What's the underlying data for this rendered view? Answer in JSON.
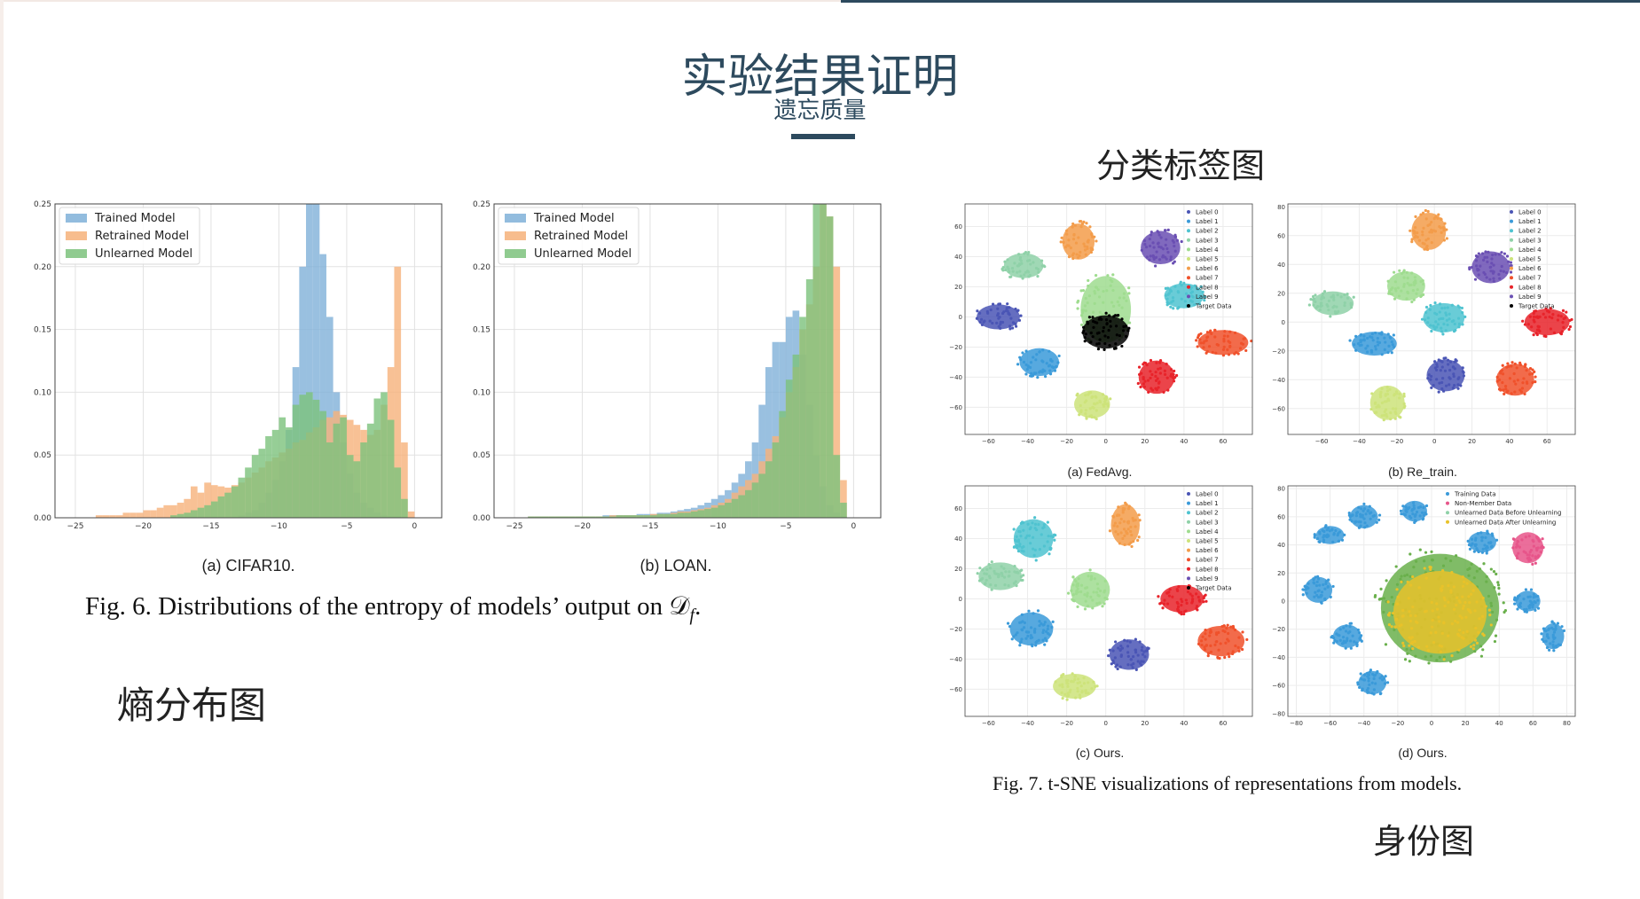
{
  "slide": {
    "title": "实验结果证明",
    "subtitle": "遗忘质量",
    "label_entropy": "熵分布图",
    "label_classification": "分类标签图",
    "label_identity": "身份图",
    "fig6_caption": "Fig. 6.  Distributions of the entropy of models’ output on 𝒟",
    "fig6_caption_sub": "f",
    "fig6_caption_end": ".",
    "fig7_caption": "Fig. 7.  t-SNE visualizations of representations from models.",
    "colors": {
      "title": "#2d4a5e",
      "trained": "#7fb0d8",
      "retrained": "#f6b27a",
      "unlearned": "#7cc27c"
    }
  },
  "chart_data": [
    {
      "type": "bar",
      "id": "fig6a",
      "caption": "(a) CIFAR10.",
      "xlim": [
        -26.5,
        2
      ],
      "ylim": [
        0,
        0.25
      ],
      "xticks": [
        -25,
        -20,
        -15,
        -10,
        -5,
        0
      ],
      "yticks": [
        0.0,
        0.05,
        0.1,
        0.15,
        0.2,
        0.25
      ],
      "ytick_labels": [
        "0.00",
        "0.05",
        "0.10",
        "0.15",
        "0.20",
        "0.25"
      ],
      "bin_start": -25.5,
      "bin_width": 0.5,
      "grid": true,
      "legend_position": "top-left",
      "series": [
        {
          "name": "Trained Model",
          "color": "#7fb0d8",
          "values": [
            0,
            0,
            0,
            0,
            0,
            0,
            0,
            0,
            0,
            0,
            0,
            0,
            0,
            0,
            0,
            0,
            0,
            0,
            0,
            0,
            0,
            0,
            0,
            0,
            0,
            0.002,
            0.004,
            0.006,
            0.012,
            0.02,
            0.03,
            0.045,
            0.07,
            0.12,
            0.2,
            0.25,
            0.25,
            0.21,
            0.16,
            0.1,
            0.06,
            0.035,
            0.02,
            0.012,
            0.008,
            0.004,
            0.002,
            0.001,
            0.001,
            0,
            0
          ]
        },
        {
          "name": "Retrained Model",
          "color": "#f6b27a",
          "values": [
            0,
            0,
            0,
            0,
            0.002,
            0.002,
            0.002,
            0.002,
            0.004,
            0.004,
            0.004,
            0.006,
            0.006,
            0.008,
            0.01,
            0.01,
            0.012,
            0.015,
            0.025,
            0.02,
            0.028,
            0.026,
            0.025,
            0.024,
            0.026,
            0.028,
            0.032,
            0.036,
            0.04,
            0.045,
            0.048,
            0.052,
            0.055,
            0.06,
            0.062,
            0.068,
            0.072,
            0.078,
            0.08,
            0.085,
            0.082,
            0.078,
            0.074,
            0.07,
            0.066,
            0.07,
            0.09,
            0.12,
            0.2,
            0.06,
            0.005
          ]
        },
        {
          "name": "Unlearned Model",
          "color": "#7cc27c",
          "values": [
            0,
            0,
            0,
            0,
            0,
            0,
            0,
            0,
            0,
            0,
            0,
            0,
            0,
            0,
            0,
            0.002,
            0.003,
            0.004,
            0.006,
            0.008,
            0.01,
            0.013,
            0.017,
            0.02,
            0.025,
            0.032,
            0.04,
            0.05,
            0.055,
            0.065,
            0.07,
            0.08,
            0.072,
            0.09,
            0.098,
            0.1,
            0.094,
            0.085,
            0.06,
            0.075,
            0.08,
            0.05,
            0.045,
            0.06,
            0.075,
            0.095,
            0.1,
            0.078,
            0.04,
            0.015,
            0
          ]
        }
      ]
    },
    {
      "type": "bar",
      "id": "fig6b",
      "caption": "(b) LOAN.",
      "xlim": [
        -26.5,
        2
      ],
      "ylim": [
        0,
        0.25
      ],
      "xticks": [
        -25,
        -20,
        -15,
        -10,
        -5,
        0
      ],
      "yticks": [
        0.0,
        0.05,
        0.1,
        0.15,
        0.2,
        0.25
      ],
      "ytick_labels": [
        "0.00",
        "0.05",
        "0.10",
        "0.15",
        "0.20",
        "0.25"
      ],
      "bin_start": -25.5,
      "bin_width": 0.5,
      "grid": true,
      "legend_position": "top-left",
      "series": [
        {
          "name": "Trained Model",
          "color": "#7fb0d8",
          "values": [
            0,
            0,
            0,
            0.001,
            0.001,
            0.001,
            0.001,
            0.001,
            0.001,
            0.001,
            0.001,
            0.001,
            0.001,
            0.001,
            0.002,
            0.002,
            0.002,
            0.002,
            0.002,
            0.003,
            0.003,
            0.003,
            0.004,
            0.004,
            0.005,
            0.006,
            0.007,
            0.008,
            0.01,
            0.012,
            0.015,
            0.018,
            0.022,
            0.028,
            0.035,
            0.045,
            0.06,
            0.09,
            0.12,
            0.14,
            0.14,
            0.16,
            0.165,
            0.13,
            0.09,
            0.05,
            0.025,
            0.01,
            0.004,
            0.001,
            0
          ]
        },
        {
          "name": "Retrained Model",
          "color": "#f6b27a",
          "values": [
            0,
            0,
            0,
            0.001,
            0.001,
            0.001,
            0.001,
            0.001,
            0.001,
            0.001,
            0.001,
            0.001,
            0.001,
            0.001,
            0.001,
            0.002,
            0.002,
            0.002,
            0.002,
            0.002,
            0.002,
            0.003,
            0.003,
            0.003,
            0.004,
            0.005,
            0.005,
            0.006,
            0.007,
            0.008,
            0.01,
            0.012,
            0.015,
            0.02,
            0.025,
            0.03,
            0.035,
            0.045,
            0.055,
            0.065,
            0.08,
            0.1,
            0.12,
            0.15,
            0.17,
            0.2,
            0.25,
            0.24,
            0.2,
            0.03,
            0
          ]
        },
        {
          "name": "Unlearned Model",
          "color": "#7cc27c",
          "values": [
            0,
            0,
            0,
            0.001,
            0.001,
            0.001,
            0.001,
            0.001,
            0.001,
            0.001,
            0.001,
            0.001,
            0.001,
            0.001,
            0.001,
            0.001,
            0.002,
            0.002,
            0.002,
            0.002,
            0.002,
            0.002,
            0.003,
            0.003,
            0.003,
            0.004,
            0.004,
            0.005,
            0.006,
            0.007,
            0.008,
            0.01,
            0.012,
            0.015,
            0.018,
            0.022,
            0.028,
            0.035,
            0.045,
            0.06,
            0.085,
            0.11,
            0.13,
            0.16,
            0.19,
            0.25,
            0.25,
            0.24,
            0.05,
            0.012,
            0
          ]
        }
      ]
    },
    {
      "type": "scatter",
      "id": "fig7a",
      "caption": "(a) FedAvg.",
      "xlim": [
        -72,
        75
      ],
      "ylim": [
        -78,
        75
      ],
      "xticks": [
        -60,
        -40,
        -20,
        0,
        20,
        40,
        60
      ],
      "yticks": [
        -60,
        -40,
        -20,
        0,
        20,
        40,
        60
      ],
      "grid": true,
      "legend_position": "top-right",
      "legend": [
        "Label 0",
        "Label 1",
        "Label 2",
        "Label 3",
        "Label 4",
        "Label 5",
        "Label 6",
        "Label 7",
        "Label 8",
        "Label 9",
        "Target Data"
      ],
      "clusters": [
        {
          "x": -14,
          "y": 50,
          "rx": 9,
          "ry": 13,
          "color": "#f39c4a"
        },
        {
          "x": 28,
          "y": 46,
          "rx": 11,
          "ry": 12,
          "color": "#6a4fb3"
        },
        {
          "x": -42,
          "y": 34,
          "rx": 11,
          "ry": 9,
          "color": "#8fd1a8"
        },
        {
          "x": 40,
          "y": 14,
          "rx": 11,
          "ry": 9,
          "color": "#4fc3d0"
        },
        {
          "x": -55,
          "y": 0,
          "rx": 12,
          "ry": 9,
          "color": "#4a55b5"
        },
        {
          "x": 0,
          "y": 5,
          "rx": 14,
          "ry": 24,
          "color": "#9fdc8f"
        },
        {
          "x": 0,
          "y": -10,
          "rx": 13,
          "ry": 12,
          "color": "#000000"
        },
        {
          "x": -34,
          "y": -30,
          "rx": 11,
          "ry": 10,
          "color": "#3a9ad9"
        },
        {
          "x": 60,
          "y": -17,
          "rx": 14,
          "ry": 9,
          "color": "#f0512b"
        },
        {
          "x": 26,
          "y": -40,
          "rx": 10,
          "ry": 12,
          "color": "#e8232a"
        },
        {
          "x": -7,
          "y": -58,
          "rx": 10,
          "ry": 10,
          "color": "#cde37a"
        }
      ]
    },
    {
      "type": "scatter",
      "id": "fig7b",
      "caption": "(b) Re_train.",
      "xlim": [
        -78,
        75
      ],
      "ylim": [
        -78,
        82
      ],
      "xticks": [
        -60,
        -40,
        -20,
        0,
        20,
        40,
        60
      ],
      "yticks": [
        -60,
        -40,
        -20,
        0,
        20,
        40,
        60,
        80
      ],
      "grid": true,
      "legend_position": "top-right",
      "legend": [
        "Label 0",
        "Label 1",
        "Label 2",
        "Label 3",
        "Label 4",
        "Label 5",
        "Label 6",
        "Label 7",
        "Label 8",
        "Label 9",
        "Target Data"
      ],
      "clusters": [
        {
          "x": -3,
          "y": 63,
          "rx": 10,
          "ry": 14,
          "color": "#f39c4a"
        },
        {
          "x": 30,
          "y": 38,
          "rx": 11,
          "ry": 12,
          "color": "#6a4fb3"
        },
        {
          "x": -54,
          "y": 13,
          "rx": 12,
          "ry": 9,
          "color": "#8fd1a8"
        },
        {
          "x": -15,
          "y": 25,
          "rx": 11,
          "ry": 11,
          "color": "#9fdc8f"
        },
        {
          "x": 5,
          "y": 3,
          "rx": 12,
          "ry": 11,
          "color": "#4fc3d0"
        },
        {
          "x": -32,
          "y": -15,
          "rx": 13,
          "ry": 9,
          "color": "#3a9ad9"
        },
        {
          "x": 60,
          "y": 0,
          "rx": 13,
          "ry": 10,
          "color": "#e8232a"
        },
        {
          "x": 6,
          "y": -37,
          "rx": 11,
          "ry": 12,
          "color": "#4a55b5"
        },
        {
          "x": 43,
          "y": -40,
          "rx": 11,
          "ry": 12,
          "color": "#f0512b"
        },
        {
          "x": -25,
          "y": -56,
          "rx": 10,
          "ry": 13,
          "color": "#cde37a"
        }
      ]
    },
    {
      "type": "scatter",
      "id": "fig7c",
      "caption": "(c) Ours.",
      "xlim": [
        -72,
        75
      ],
      "ylim": [
        -78,
        75
      ],
      "xticks": [
        -60,
        -40,
        -20,
        0,
        20,
        40,
        60
      ],
      "yticks": [
        -60,
        -40,
        -20,
        0,
        20,
        40,
        60
      ],
      "grid": true,
      "legend_position": "top-right",
      "legend": [
        "Label 0",
        "Label 1",
        "Label 2",
        "Label 3",
        "Label 4",
        "Label 5",
        "Label 6",
        "Label 7",
        "Label 8",
        "Label 9",
        "Target Data"
      ],
      "clusters": [
        {
          "x": -37,
          "y": 40,
          "rx": 11,
          "ry": 14,
          "color": "#4fc3d0"
        },
        {
          "x": 10,
          "y": 49,
          "rx": 8,
          "ry": 15,
          "color": "#f39c4a"
        },
        {
          "x": -54,
          "y": 15,
          "rx": 12,
          "ry": 10,
          "color": "#8fd1a8"
        },
        {
          "x": -8,
          "y": 6,
          "rx": 11,
          "ry": 13,
          "color": "#9fdc8f"
        },
        {
          "x": 39,
          "y": 0,
          "rx": 12,
          "ry": 10,
          "color": "#e8232a"
        },
        {
          "x": -38,
          "y": -20,
          "rx": 12,
          "ry": 12,
          "color": "#3a9ad9"
        },
        {
          "x": 12,
          "y": -37,
          "rx": 11,
          "ry": 11,
          "color": "#4a55b5"
        },
        {
          "x": 59,
          "y": -28,
          "rx": 13,
          "ry": 11,
          "color": "#f0512b"
        },
        {
          "x": -16,
          "y": -58,
          "rx": 12,
          "ry": 9,
          "color": "#cde37a"
        }
      ]
    },
    {
      "type": "scatter",
      "id": "fig7d",
      "caption": "(d) Ours.",
      "xlim": [
        -85,
        85
      ],
      "ylim": [
        -82,
        82
      ],
      "xticks": [
        -80,
        -60,
        -40,
        -20,
        0,
        20,
        40,
        60,
        80
      ],
      "yticks": [
        -80,
        -60,
        -40,
        -20,
        0,
        20,
        40,
        60,
        80
      ],
      "grid": true,
      "legend_position": "top-right",
      "legend": [
        "Training Data",
        "Non-Member Data",
        "Unlearned Data Before Unlearning",
        "Unlearned Data After Unlearning"
      ],
      "clusters": [
        {
          "x": -40,
          "y": 60,
          "rx": 9,
          "ry": 9,
          "color": "#3a9ad9"
        },
        {
          "x": -10,
          "y": 64,
          "rx": 8,
          "ry": 8,
          "color": "#3a9ad9"
        },
        {
          "x": -60,
          "y": 47,
          "rx": 9,
          "ry": 7,
          "color": "#3a9ad9"
        },
        {
          "x": 30,
          "y": 42,
          "rx": 9,
          "ry": 8,
          "color": "#3a9ad9"
        },
        {
          "x": 57,
          "y": 38,
          "rx": 10,
          "ry": 12,
          "color": "#e7558a"
        },
        {
          "x": -67,
          "y": 8,
          "rx": 9,
          "ry": 10,
          "color": "#3a9ad9"
        },
        {
          "x": 57,
          "y": 0,
          "rx": 8,
          "ry": 8,
          "color": "#3a9ad9"
        },
        {
          "x": -50,
          "y": -25,
          "rx": 9,
          "ry": 9,
          "color": "#3a9ad9"
        },
        {
          "x": 72,
          "y": -25,
          "rx": 7,
          "ry": 10,
          "color": "#3a9ad9"
        },
        {
          "x": -35,
          "y": -58,
          "rx": 9,
          "ry": 9,
          "color": "#3a9ad9"
        },
        {
          "x": 5,
          "y": -5,
          "rx": 38,
          "ry": 42,
          "color": "#6ab04c"
        },
        {
          "x": 5,
          "y": -8,
          "rx": 30,
          "ry": 32,
          "color": "#e8c22a"
        }
      ]
    }
  ]
}
